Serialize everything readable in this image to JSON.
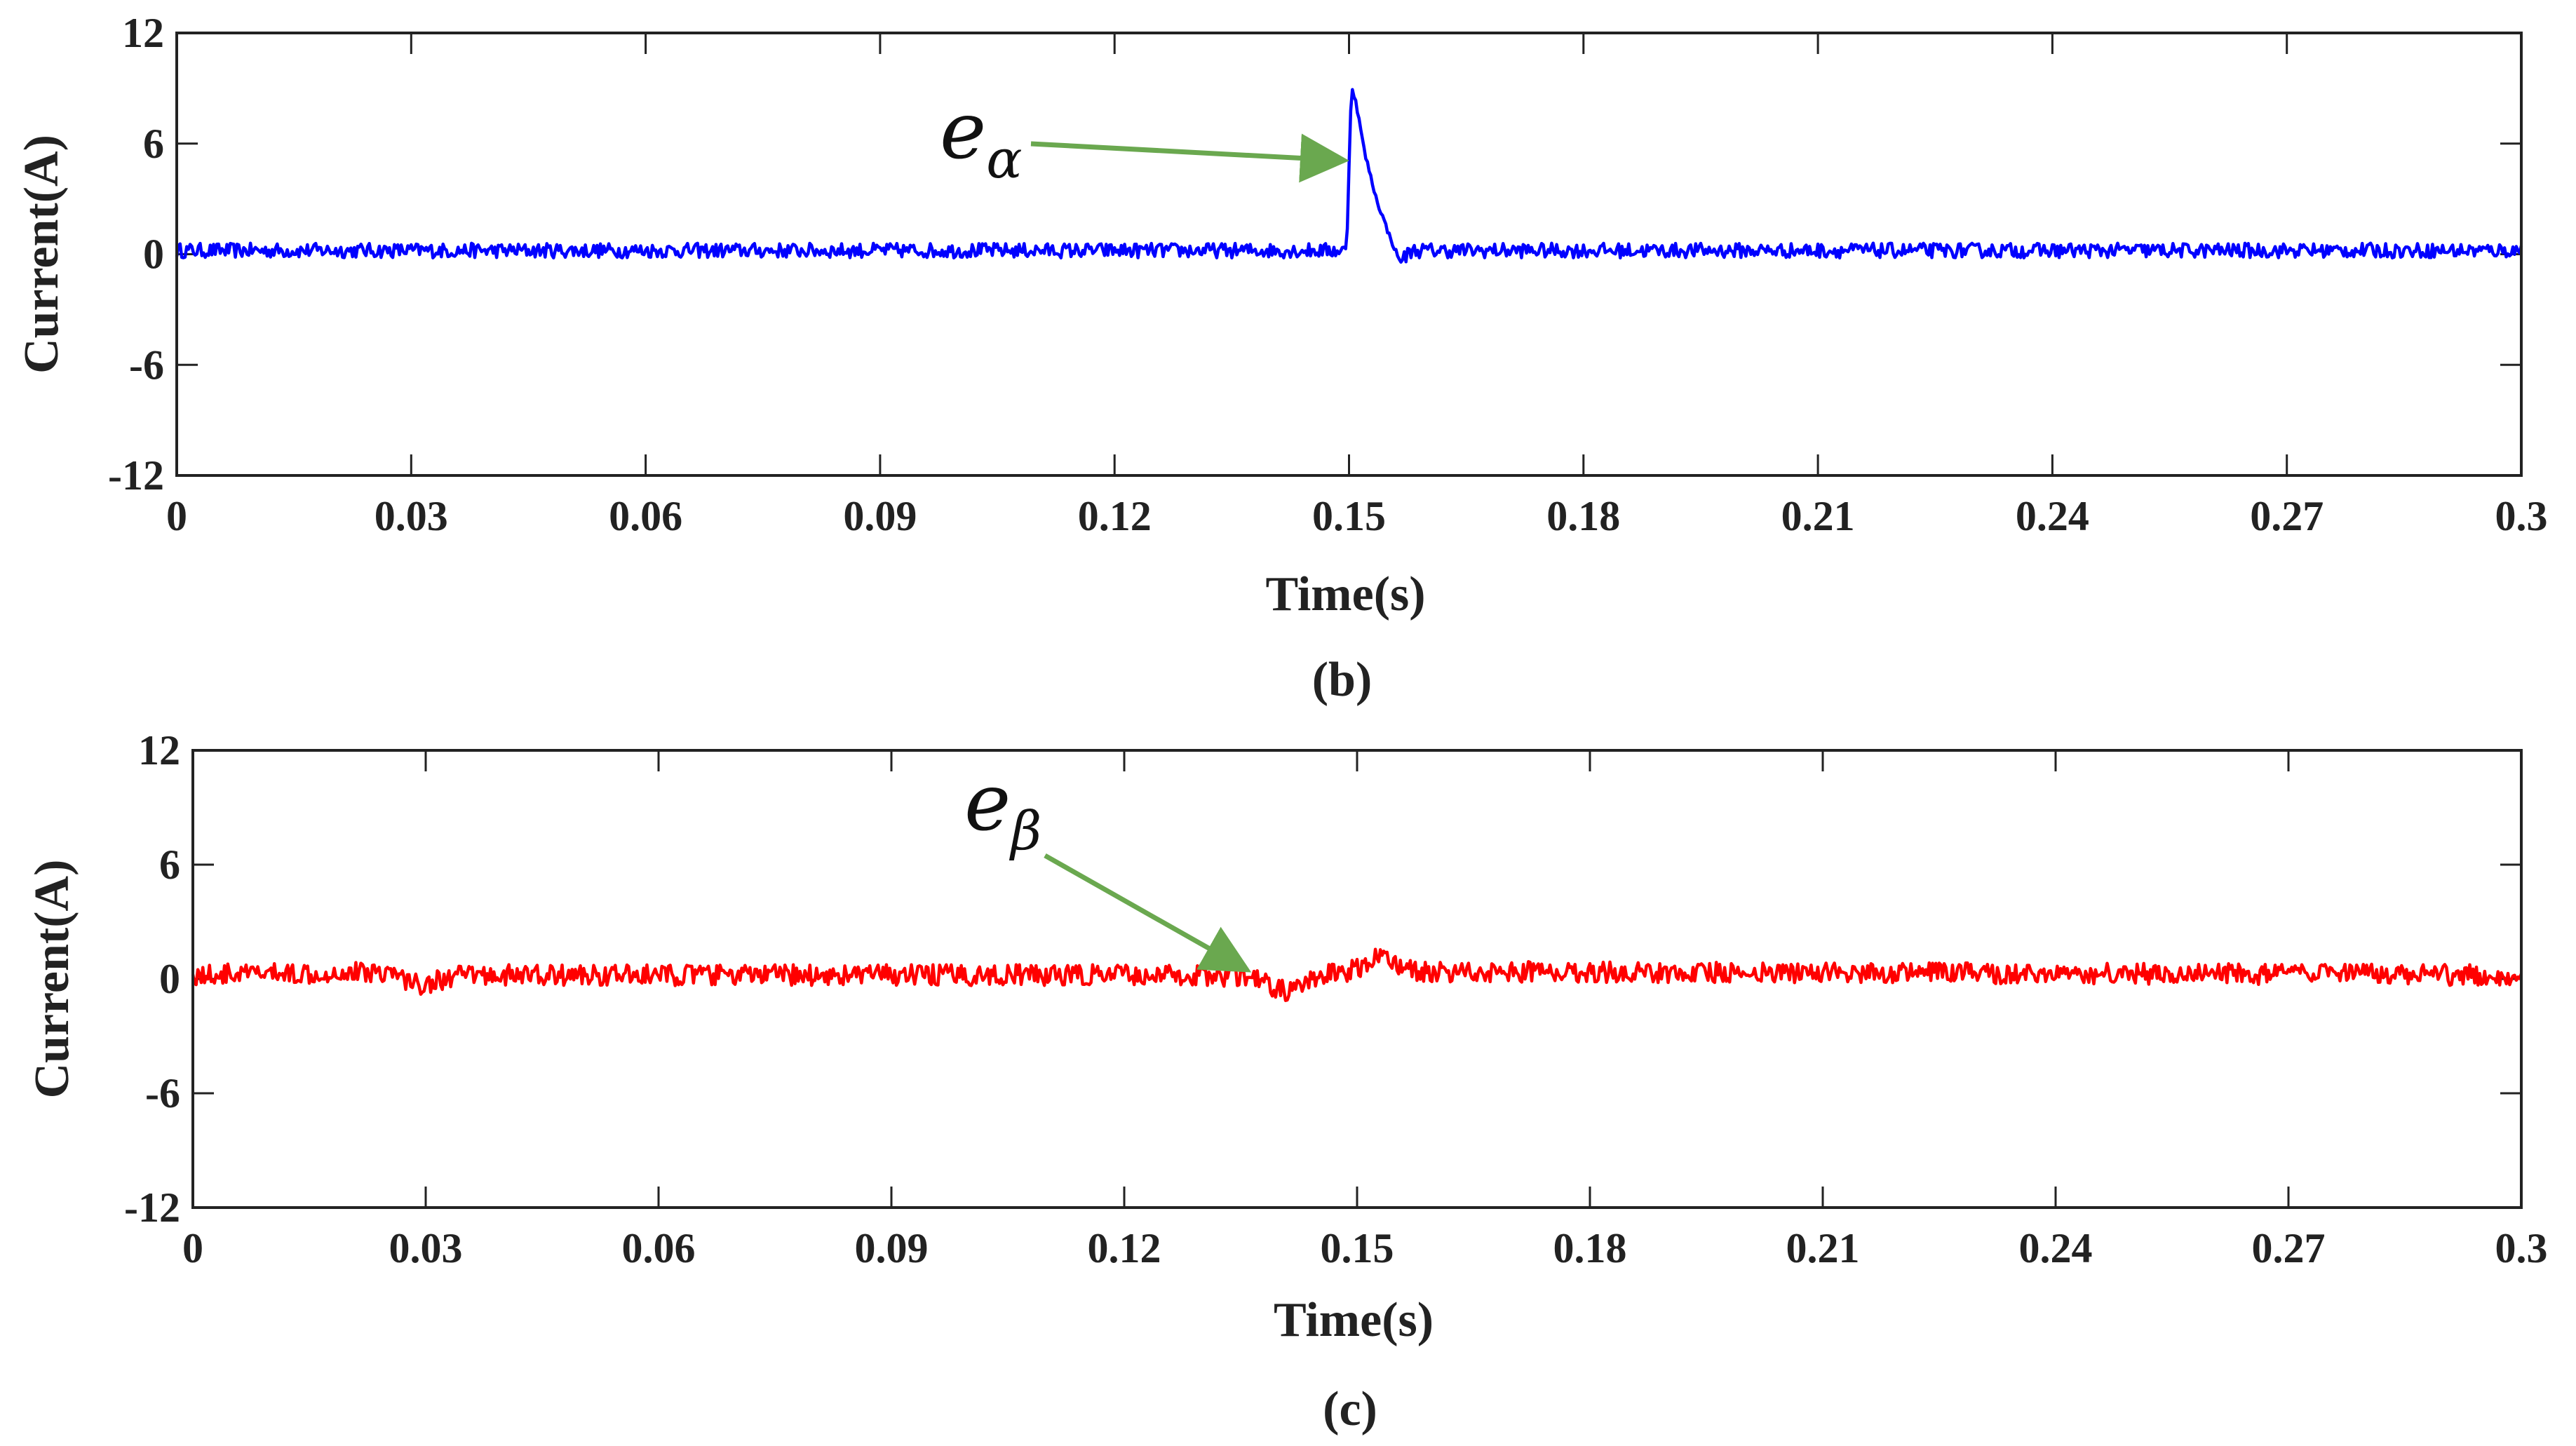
{
  "chart_data": [
    {
      "type": "line",
      "caption": "(b)",
      "xlabel": "Time(s)",
      "ylabel": "Current(A)",
      "xlim": [
        0,
        0.3
      ],
      "ylim": [
        -12,
        12
      ],
      "xticks": [
        "0",
        "0.03",
        "0.06",
        "0.09",
        "0.12",
        "0.15",
        "0.18",
        "0.21",
        "0.24",
        "0.27",
        "0.3"
      ],
      "yticks": [
        "12",
        "6",
        "0",
        "-6",
        "-12"
      ],
      "grid": false,
      "color": "#0000ff",
      "series": [
        {
          "name": "e_alpha",
          "base": 0.2,
          "noise_amplitude": 0.4,
          "points": [
            [
              0,
              0.2
            ],
            [
              0.1497,
              0.2
            ],
            [
              0.1503,
              9.2
            ],
            [
              0.151,
              8.0
            ],
            [
              0.152,
              5.5
            ],
            [
              0.1535,
              3.0
            ],
            [
              0.155,
              1.2
            ],
            [
              0.1565,
              -0.4
            ],
            [
              0.158,
              0.2
            ],
            [
              0.3,
              0.2
            ]
          ]
        }
      ],
      "annotation": {
        "base": "e",
        "subscript": "α",
        "arrow_to": [
          0.1495,
          5.1
        ]
      }
    },
    {
      "type": "line",
      "caption": "(c)",
      "xlabel": "Time(s)",
      "ylabel": "Current(A)",
      "xlim": [
        0,
        0.3
      ],
      "ylim": [
        -12,
        12
      ],
      "xticks": [
        "0",
        "0.03",
        "0.06",
        "0.09",
        "0.12",
        "0.15",
        "0.18",
        "0.21",
        "0.24",
        "0.27",
        "0.3"
      ],
      "yticks": [
        "12",
        "6",
        "0",
        "-6",
        "-12"
      ],
      "grid": false,
      "color": "#ff0000",
      "series": [
        {
          "name": "e_beta",
          "base": 0.2,
          "noise_amplitude": 0.55,
          "points": [
            [
              0,
              0.2
            ],
            [
              0.025,
              0.4
            ],
            [
              0.029,
              -0.3
            ],
            [
              0.035,
              0.2
            ],
            [
              0.13,
              0.2
            ],
            [
              0.136,
              0.1
            ],
            [
              0.141,
              -0.7
            ],
            [
              0.146,
              0.2
            ],
            [
              0.15,
              0.5
            ],
            [
              0.153,
              1.3
            ],
            [
              0.157,
              0.4
            ],
            [
              0.3,
              0.2
            ]
          ]
        }
      ],
      "annotation": {
        "base": "e",
        "subscript": "β",
        "arrow_to": [
          0.136,
          0.6
        ]
      }
    }
  ]
}
